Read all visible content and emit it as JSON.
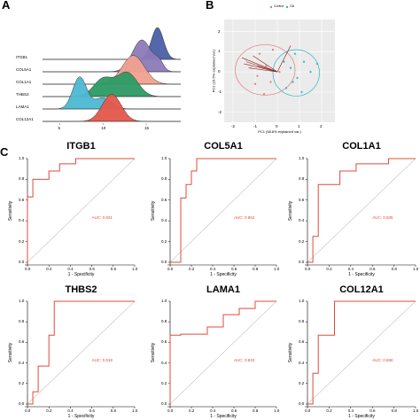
{
  "panel_labels": {
    "a": "A",
    "b": "B",
    "c": "C"
  },
  "colors": {
    "roc_line": "#e04b3a",
    "diagonal": "#9a9a9a",
    "axis": "#000000",
    "pca_control": "#e07b7b",
    "pca_oa": "#2bb6c9",
    "pca_background": "#ebebeb"
  },
  "chart_data": [
    {
      "type": "area",
      "kind": "ridgeline",
      "categories": [
        "ITGB1",
        "COL5A1",
        "COL1A1",
        "THBS2",
        "LAMA1",
        "COL12A1"
      ],
      "xticks": [
        "5",
        "10",
        "15"
      ],
      "xlim": [
        3,
        19
      ],
      "series": [
        {
          "category": "ITGB1",
          "color": "#4b5ea8",
          "peaks": [
            [
              16.3,
              1.0,
              0.7
            ]
          ]
        },
        {
          "category": "COL5A1",
          "color": "#8b7bb8",
          "peaks": [
            [
              14.5,
              1.0,
              1.1
            ],
            [
              16.5,
              0.25,
              0.5
            ]
          ]
        },
        {
          "category": "COL1A1",
          "color": "#f2a08e",
          "peaks": [
            [
              13.5,
              0.9,
              1.3
            ]
          ]
        },
        {
          "category": "THBS2",
          "color": "#2c9a63",
          "peaks": [
            [
              10.0,
              0.55,
              1.1
            ],
            [
              12.8,
              0.75,
              1.2
            ]
          ]
        },
        {
          "category": "LAMA1",
          "color": "#4bb8d3",
          "peaks": [
            [
              7.3,
              1.0,
              0.8
            ],
            [
              10.0,
              0.35,
              1.0
            ]
          ]
        },
        {
          "category": "COL12A1",
          "color": "#e5564a",
          "peaks": [
            [
              11.0,
              0.85,
              1.1
            ]
          ]
        }
      ]
    },
    {
      "type": "scatter",
      "kind": "pca-biplot",
      "xlabel": "PC1 (58.8% explained var.)",
      "ylabel": "PC2 (19.5% explained var.)",
      "legend": [
        "Control",
        "OA"
      ],
      "legend_position": "top",
      "xticks": [
        "-2",
        "-1",
        "0",
        "1",
        "2"
      ],
      "yticks": [
        "-2",
        "-1",
        "0",
        "1",
        "2"
      ],
      "xlim": [
        -2.4,
        2.6
      ],
      "ylim": [
        -2.5,
        2.6
      ],
      "grid": true,
      "points": {
        "Control": [
          [
            -1.4,
            0.6
          ],
          [
            -1.2,
            0.2
          ],
          [
            -0.9,
            -0.2
          ],
          [
            -0.8,
            0.9
          ],
          [
            -0.5,
            0.3
          ],
          [
            -0.3,
            -0.5
          ],
          [
            -1.0,
            -0.6
          ],
          [
            -0.2,
            1.1
          ],
          [
            0.1,
            0.0
          ],
          [
            -0.6,
            -1.1
          ]
        ],
        "OA": [
          [
            0.6,
            0.2
          ],
          [
            0.9,
            -0.3
          ],
          [
            1.2,
            0.5
          ],
          [
            0.4,
            -0.8
          ],
          [
            1.5,
            0.0
          ],
          [
            0.8,
            0.9
          ],
          [
            1.1,
            -1.0
          ],
          [
            0.3,
            0.5
          ],
          [
            1.8,
            0.4
          ],
          [
            0.7,
            -0.5
          ]
        ]
      },
      "ellipses": {
        "Control": {
          "cx": -0.55,
          "cy": 0.1,
          "rx": 1.35,
          "ry": 1.25
        },
        "OA": {
          "cx": 0.85,
          "cy": -0.05,
          "rx": 1.05,
          "ry": 1.15
        }
      },
      "loadings": [
        [
          -1.6,
          0.7
        ],
        [
          -1.5,
          0.4
        ],
        [
          -1.4,
          0.5
        ],
        [
          -1.3,
          0.2
        ],
        [
          -1.1,
          0.8
        ],
        [
          -0.9,
          0.3
        ],
        [
          0.6,
          1.3
        ]
      ]
    },
    {
      "type": "line",
      "kind": "roc",
      "title": "ITGB1",
      "auc_label": "AUC: 0.931",
      "xlabel": "1 - Specificity",
      "ylabel": "Sensitivity",
      "xticks": [
        "0.0",
        "0.2",
        "0.4",
        "0.6",
        "0.8",
        "1.0"
      ],
      "yticks": [
        "0.0",
        "0.2",
        "0.4",
        "0.6",
        "0.8",
        "1.0"
      ],
      "x": [
        0,
        0,
        0.05,
        0.05,
        0.2,
        0.2,
        0.3,
        0.3,
        0.45,
        0.45,
        1.0
      ],
      "y": [
        0,
        0.63,
        0.63,
        0.8,
        0.8,
        0.88,
        0.88,
        0.95,
        0.95,
        1.0,
        1.0
      ]
    },
    {
      "type": "line",
      "kind": "roc",
      "title": "COL5A1",
      "auc_label": "AUC: 0.862",
      "xlabel": "1 - Specificity",
      "ylabel": "Sensitivity",
      "xticks": [
        "0.0",
        "0.2",
        "0.4",
        "0.6",
        "0.8",
        "1.0"
      ],
      "yticks": [
        "0.0",
        "0.2",
        "0.4",
        "0.6",
        "0.8",
        "1.0"
      ],
      "x": [
        0,
        0.1,
        0.1,
        0.15,
        0.15,
        0.2,
        0.2,
        0.25,
        0.25,
        1.0
      ],
      "y": [
        0,
        0,
        0.62,
        0.62,
        0.75,
        0.75,
        0.88,
        0.88,
        1.0,
        1.0
      ]
    },
    {
      "type": "line",
      "kind": "roc",
      "title": "COL1A1",
      "auc_label": "AUC: 0.835",
      "xlabel": "1 - Specificity",
      "ylabel": "Sensitivity",
      "xticks": [
        "0.0",
        "0.2",
        "0.4",
        "0.6",
        "0.8",
        "1.0"
      ],
      "yticks": [
        "0.0",
        "0.2",
        "0.4",
        "0.6",
        "0.8",
        "1.0"
      ],
      "x": [
        0,
        0.05,
        0.05,
        0.1,
        0.1,
        0.3,
        0.3,
        0.45,
        0.45,
        0.75,
        0.75,
        1.0
      ],
      "y": [
        0,
        0,
        0.25,
        0.25,
        0.75,
        0.75,
        0.88,
        0.88,
        0.95,
        0.95,
        1.0,
        1.0
      ]
    },
    {
      "type": "line",
      "kind": "roc",
      "title": "THBS2",
      "auc_label": "AUC: 0.818",
      "xlabel": "1 - Specificity",
      "ylabel": "Sensitivity",
      "xticks": [
        "0.0",
        "0.2",
        "0.4",
        "0.6",
        "0.8",
        "1.0"
      ],
      "yticks": [
        "0.0",
        "0.2",
        "0.4",
        "0.6",
        "0.8",
        "1.0"
      ],
      "x": [
        0,
        0.05,
        0.05,
        0.1,
        0.1,
        0.2,
        0.2,
        0.25,
        0.25,
        1.0
      ],
      "y": [
        0,
        0,
        0.12,
        0.12,
        0.37,
        0.37,
        0.67,
        0.67,
        1.0,
        1.0
      ]
    },
    {
      "type": "line",
      "kind": "roc",
      "title": "LAMA1",
      "auc_label": "AUC: 0.833",
      "xlabel": "1 - Specificity",
      "ylabel": "Sensitivity",
      "xticks": [
        "0.0",
        "0.2",
        "0.4",
        "0.6",
        "0.8",
        "1.0"
      ],
      "yticks": [
        "0.0",
        "0.2",
        "0.4",
        "0.6",
        "0.8",
        "1.0"
      ],
      "x": [
        0,
        0,
        0.1,
        0.1,
        0.35,
        0.35,
        0.5,
        0.5,
        0.65,
        0.65,
        0.8,
        0.8,
        1.0
      ],
      "y": [
        0,
        0.67,
        0.67,
        0.68,
        0.68,
        0.75,
        0.75,
        0.87,
        0.87,
        0.93,
        0.93,
        1.0,
        1.0
      ]
    },
    {
      "type": "line",
      "kind": "roc",
      "title": "COL12A1",
      "auc_label": "AUC: 0.868",
      "xlabel": "1 - Specificity",
      "ylabel": "Sensitivity",
      "xticks": [
        "0.0",
        "0.2",
        "0.4",
        "0.6",
        "0.8",
        "1.0"
      ],
      "yticks": [
        "0.0",
        "0.2",
        "0.4",
        "0.6",
        "0.8",
        "1.0"
      ],
      "x": [
        0,
        0.05,
        0.05,
        0.1,
        0.1,
        0.25,
        0.25,
        1.0
      ],
      "y": [
        0,
        0,
        0.3,
        0.3,
        0.67,
        0.67,
        1.0,
        1.0
      ]
    }
  ]
}
